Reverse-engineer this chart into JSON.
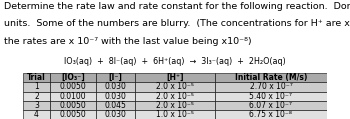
{
  "title_lines": [
    "Determine the rate law and rate constant for the following reaction.  Don’t forget the",
    "units.  Some of the numbers are blurry.  (The concentrations for H⁺ are x 10⁻⁵ and",
    "the rates are x 10⁻⁷ with the last value being x10⁻⁸)"
  ],
  "reaction": "IO₃(aq)  +  8I⁻(aq)  +  6H⁺(aq)  →  3I₃⁻(aq)  +  2H₂O(aq)",
  "headers": [
    "Trial",
    "[IO₃⁻]",
    "[I⁻]",
    "[H⁺]",
    "Initial Rate (M/s)"
  ],
  "rows": [
    [
      "1",
      "0.0050",
      "0.030",
      "2.0 x 10⁻⁵",
      "2.70 x 10⁻⁷"
    ],
    [
      "2",
      "0.0100",
      "0.030",
      "2.0 x 10⁻⁵",
      "5.40 x 10⁻⁷"
    ],
    [
      "3",
      "0.0050",
      "0.045",
      "2.0 x 10⁻⁵",
      "6.07 x 10⁻⁷"
    ],
    [
      "4",
      "0.0050",
      "0.030",
      "1.0 x 10⁻⁵",
      "6.75 x 10⁻⁸"
    ]
  ],
  "header_bg": "#aaaaaa",
  "row_bg_alt": "#cccccc",
  "row_bg_main": "#e0e0e0",
  "font_size_title": 6.8,
  "font_size_table": 5.5,
  "font_size_reaction": 5.8
}
